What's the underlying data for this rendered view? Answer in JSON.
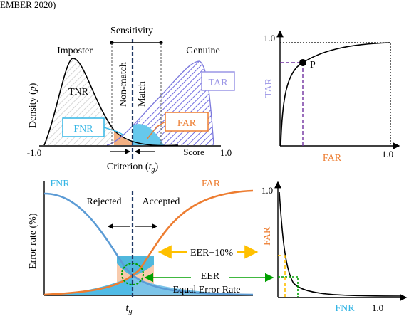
{
  "header": {
    "text": "EMBER 2020)"
  },
  "panel_tl": {
    "sensitivity": "Sensitivity",
    "imposter": "Imposter",
    "genuine": "Genuine",
    "non_match": "Non-match",
    "match": "Match",
    "tnr": "TNR",
    "tar": "TAR",
    "fnr": "FNR",
    "far": "FAR",
    "ylabel_main": "Density (",
    "ylabel_var": "p",
    "ylabel_end": ")",
    "x_min": "-1.0",
    "x_max": "1.0",
    "score": "Score",
    "criterion_main": "Criterion (",
    "criterion_var": "t",
    "criterion_sub": "g",
    "criterion_end": ")"
  },
  "panel_tr": {
    "ylabel": "TAR",
    "xlabel": "FAR",
    "y_tick": "1.0",
    "x_tick": "1.0",
    "point": "P"
  },
  "panel_bl": {
    "fnr": "FNR",
    "far": "FAR",
    "ylabel": "Error rate (%)",
    "rejected": "Rejected",
    "accepted": "Accepted",
    "eer10": "EER+10%",
    "eer": "EER",
    "eer_full": "Equal Error Rate",
    "x_var": "t",
    "x_sub": "g"
  },
  "panel_br": {
    "ylabel": "FAR",
    "xlabel": "FNR",
    "y_tick": "1.0",
    "x_tick": "1.0"
  },
  "colors": {
    "orange": "#ED7D31",
    "blue": "#5B9BD5",
    "cyan": "#33B5E5",
    "purple": "#7030A0",
    "navy": "#1F3864",
    "green": "#00A000",
    "yellow": "#FFC000",
    "lavender": "#9A95E6",
    "hatch_purple": "#6F6AE0"
  }
}
